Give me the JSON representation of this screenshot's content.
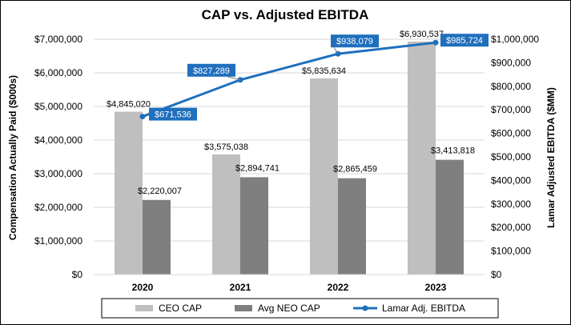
{
  "colors": {
    "ceo_bar": "#bfbfbf",
    "neo_bar": "#7f7f7f",
    "line": "#1f6fbd",
    "label_box": "#1f6fbd",
    "gridline": "#d9d9d9"
  },
  "chart_data": {
    "type": "bar",
    "title": "CAP vs. Adjusted EBITDA",
    "ylabel": "Compensation Actually Paid ($000s)",
    "y2label": "Lamar Adjusted EBITDA ($MM)",
    "categories": [
      "2020",
      "2021",
      "2022",
      "2023"
    ],
    "ylim": [
      0,
      7000000
    ],
    "y2lim": [
      0,
      1000000
    ],
    "yticks": [
      {
        "value": 0,
        "label": "$0"
      },
      {
        "value": 1000000,
        "label": "$1,000,000"
      },
      {
        "value": 2000000,
        "label": "$2,000,000"
      },
      {
        "value": 3000000,
        "label": "$3,000,000"
      },
      {
        "value": 4000000,
        "label": "$4,000,000"
      },
      {
        "value": 5000000,
        "label": "$5,000,000"
      },
      {
        "value": 6000000,
        "label": "$6,000,000"
      },
      {
        "value": 7000000,
        "label": "$7,000,000"
      }
    ],
    "y2ticks": [
      {
        "value": 0,
        "label": "$0"
      },
      {
        "value": 100000,
        "label": "$100,000"
      },
      {
        "value": 200000,
        "label": "$200,000"
      },
      {
        "value": 300000,
        "label": "$300,000"
      },
      {
        "value": 400000,
        "label": "$400,000"
      },
      {
        "value": 500000,
        "label": "$500,000"
      },
      {
        "value": 600000,
        "label": "$600,000"
      },
      {
        "value": 700000,
        "label": "$700,000"
      },
      {
        "value": 800000,
        "label": "$800,000"
      },
      {
        "value": 900000,
        "label": "$900,000"
      },
      {
        "value": 1000000,
        "label": "$1,000,000"
      }
    ],
    "grid": true,
    "legend_position": "bottom",
    "series": [
      {
        "name": "CEO CAP",
        "kind": "bar",
        "axis": "left",
        "values": [
          4845020,
          3575038,
          5835634,
          6930537
        ],
        "labels": [
          "$4,845,020",
          "$3,575,038",
          "$5,835,634",
          "$6,930,537"
        ]
      },
      {
        "name": "Avg NEO CAP",
        "kind": "bar",
        "axis": "left",
        "values": [
          2220007,
          2894741,
          2865459,
          3413818
        ],
        "labels": [
          "$2,220,007",
          "$2,894,741",
          "$2,865,459",
          "$3,413,818"
        ]
      },
      {
        "name": "Lamar Adj. EBITDA",
        "kind": "line",
        "axis": "right",
        "values": [
          671536,
          827289,
          938079,
          985724
        ],
        "labels": [
          "$671,536",
          "$827,289",
          "$938,079",
          "$985,724"
        ]
      }
    ]
  }
}
